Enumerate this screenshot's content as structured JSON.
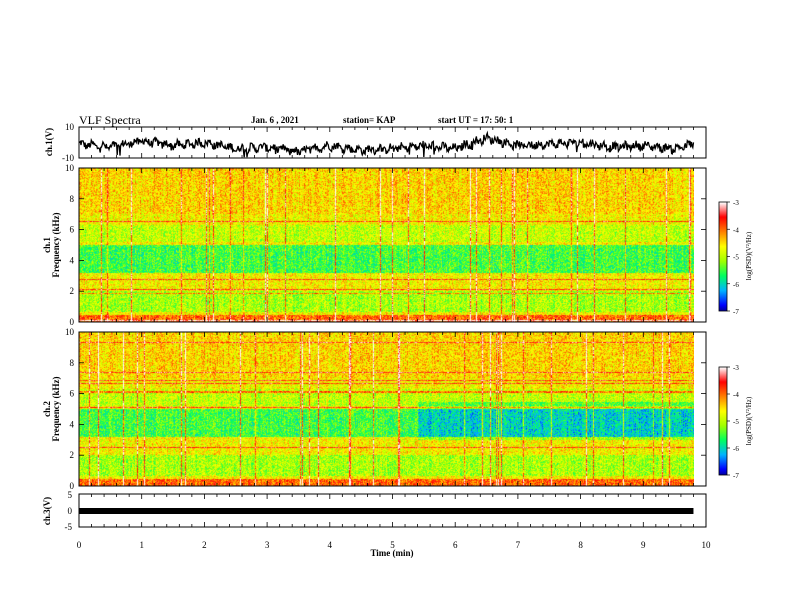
{
  "header": {
    "title": "VLF Spectra",
    "date": "Jan. 6 , 2021",
    "station": "station= KAP",
    "start": "start UT = 17: 50: 1"
  },
  "colors": {
    "colormap": [
      "#000000",
      "#0000ff",
      "#00b4ff",
      "#00ff60",
      "#a0ff00",
      "#ffff00",
      "#ff8000",
      "#ff0000",
      "#ffffff"
    ]
  },
  "chart_data": [
    {
      "type": "line",
      "id": "ch1-waveform",
      "ylabel": "ch.1(V)",
      "ylim": [
        -10,
        10
      ],
      "yticks": [
        "10",
        "-10"
      ],
      "xlim": [
        0,
        10
      ],
      "description_values": {
        "x": [
          0,
          0.5,
          1.0,
          1.5,
          2.0,
          2.5,
          3.0,
          3.5,
          4.0,
          4.5,
          5.0,
          5.5,
          6.0,
          6.5,
          7.0,
          7.5,
          8.0,
          8.5,
          9.0,
          9.5,
          9.8
        ],
        "y": [
          -1,
          -3,
          1,
          -2,
          0,
          -4,
          -3,
          -6,
          -2,
          -5,
          -4,
          -2,
          -4,
          3,
          -2,
          -1,
          0,
          -3,
          -2,
          -4,
          -1
        ]
      }
    },
    {
      "type": "heatmap",
      "id": "ch1-spectrogram",
      "ylabel_top": "ch.1",
      "ylabel": "Frequency (kHz)",
      "ylim": [
        0,
        10
      ],
      "yticks": [
        "0",
        "2",
        "4",
        "6",
        "8",
        "10"
      ],
      "xlim": [
        0,
        10
      ],
      "colorbar": {
        "label": "log(PSD)(V²/Hz)",
        "range": [
          -7,
          -3
        ],
        "ticks": [
          "-3",
          "-4",
          "-5",
          "-6",
          "-7"
        ]
      }
    },
    {
      "type": "heatmap",
      "id": "ch2-spectrogram",
      "ylabel_top": "ch.2",
      "ylabel": "Frequency (kHz)",
      "ylim": [
        0,
        10
      ],
      "yticks": [
        "0",
        "2",
        "4",
        "6",
        "8",
        "10"
      ],
      "xlim": [
        0,
        10
      ],
      "colorbar": {
        "label": "log(PSD)(V²/Hz)",
        "range": [
          -7,
          -3
        ],
        "ticks": [
          "-3",
          "-4",
          "-5",
          "-6",
          "-7"
        ]
      }
    },
    {
      "type": "line",
      "id": "ch3-trace",
      "ylabel": "ch.3(V)",
      "ylim": [
        -5,
        5
      ],
      "yticks": [
        "5",
        "0",
        "-5"
      ],
      "xlim": [
        0,
        9.8
      ],
      "y_level": 0
    }
  ],
  "xaxis": {
    "label": "Time (min)",
    "ticks": [
      "0",
      "1",
      "2",
      "3",
      "4",
      "5",
      "6",
      "7",
      "8",
      "9",
      "10"
    ]
  }
}
